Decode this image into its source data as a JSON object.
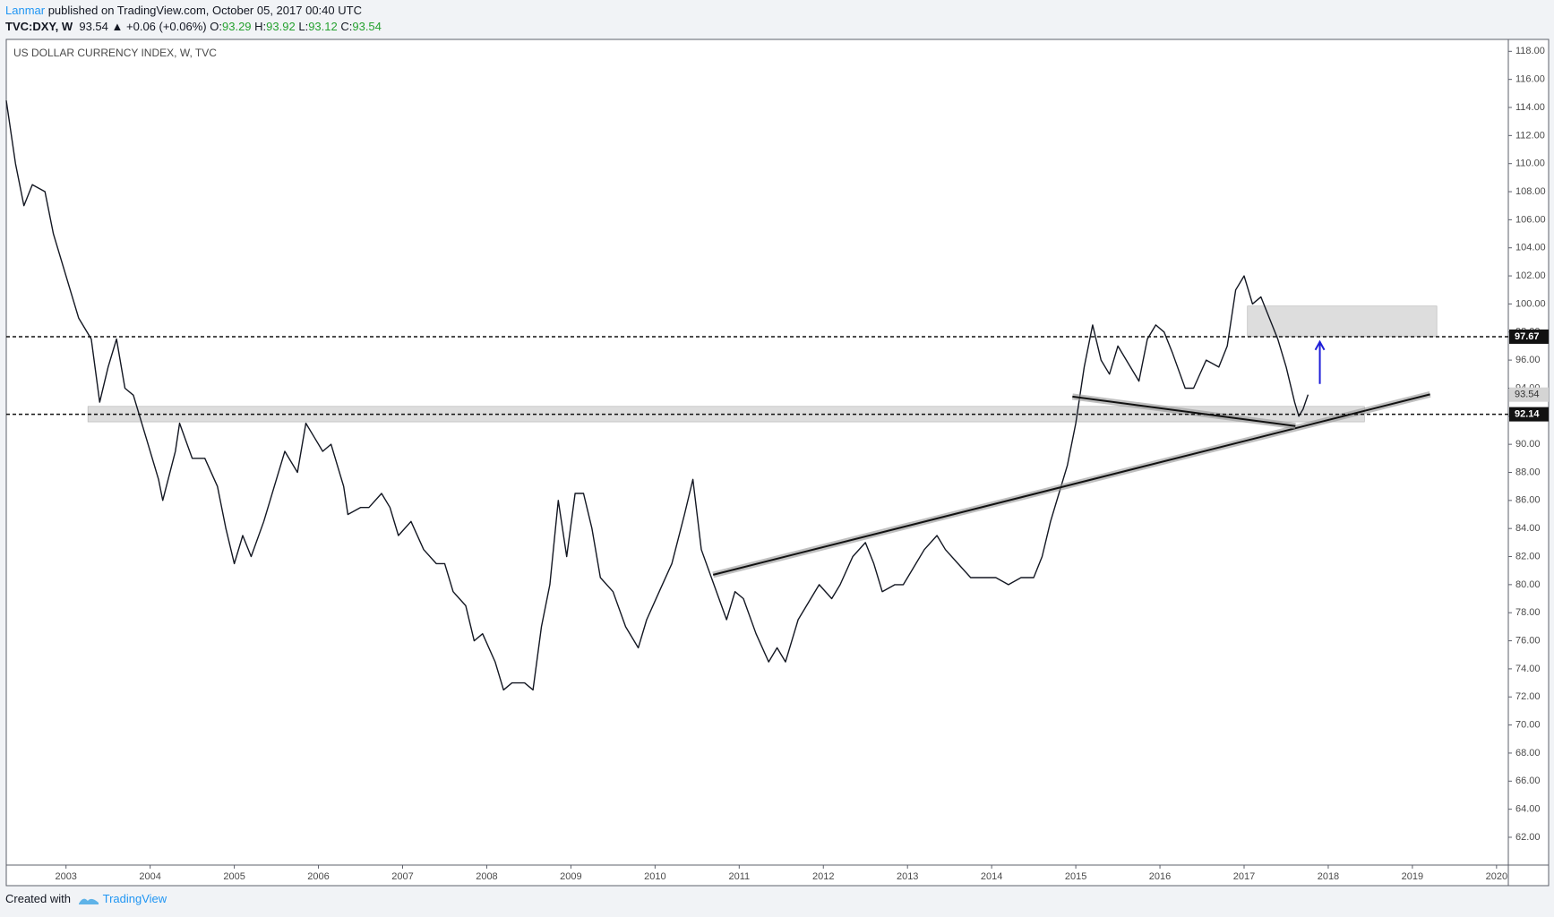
{
  "header": {
    "author": "Lanmar",
    "published": "published on TradingView.com, October 05, 2017 00:40 UTC",
    "symbol": "TVC:DXY, W",
    "last": 93.54,
    "change": "▲ +0.06 (+0.06%)",
    "ohlc": [
      {
        "label": "O:",
        "value": 93.29
      },
      {
        "label": "H:",
        "value": 93.92
      },
      {
        "label": "L:",
        "value": 93.12
      },
      {
        "label": "C:",
        "value": 93.54
      }
    ]
  },
  "footer": {
    "text": "Created with",
    "brand": "TradingView"
  },
  "chart_data": {
    "type": "line",
    "title": "US DOLLAR CURRENCY INDEX, W, TVC",
    "color": "#131722",
    "x": [
      2002.29,
      2002.4,
      2002.5,
      2002.6,
      2002.75,
      2002.85,
      2002.95,
      2003.05,
      2003.15,
      2003.3,
      2003.4,
      2003.5,
      2003.6,
      2003.7,
      2003.8,
      2003.95,
      2004.1,
      2004.15,
      2004.3,
      2004.35,
      2004.5,
      2004.65,
      2004.8,
      2004.9,
      2005.0,
      2005.1,
      2005.2,
      2005.35,
      2005.5,
      2005.6,
      2005.75,
      2005.85,
      2005.95,
      2006.05,
      2006.15,
      2006.3,
      2006.35,
      2006.5,
      2006.6,
      2006.75,
      2006.85,
      2006.95,
      2007.1,
      2007.25,
      2007.4,
      2007.5,
      2007.6,
      2007.75,
      2007.85,
      2007.95,
      2008.1,
      2008.2,
      2008.3,
      2008.45,
      2008.55,
      2008.65,
      2008.75,
      2008.85,
      2008.95,
      2009.05,
      2009.15,
      2009.25,
      2009.35,
      2009.5,
      2009.65,
      2009.8,
      2009.9,
      2010.05,
      2010.2,
      2010.35,
      2010.45,
      2010.55,
      2010.7,
      2010.85,
      2010.95,
      2011.05,
      2011.2,
      2011.35,
      2011.45,
      2011.55,
      2011.7,
      2011.85,
      2011.95,
      2012.1,
      2012.2,
      2012.35,
      2012.5,
      2012.6,
      2012.7,
      2012.85,
      2012.95,
      2013.1,
      2013.2,
      2013.35,
      2013.45,
      2013.6,
      2013.75,
      2013.9,
      2014.05,
      2014.2,
      2014.35,
      2014.5,
      2014.6,
      2014.7,
      2014.8,
      2014.9,
      2015.0,
      2015.1,
      2015.2,
      2015.3,
      2015.4,
      2015.5,
      2015.6,
      2015.75,
      2015.85,
      2015.95,
      2016.05,
      2016.15,
      2016.3,
      2016.4,
      2016.55,
      2016.7,
      2016.8,
      2016.9,
      2017.0,
      2017.1,
      2017.2,
      2017.3,
      2017.4,
      2017.5,
      2017.6,
      2017.65,
      2017.7,
      2017.76
    ],
    "values": [
      114.5,
      110,
      107,
      108.5,
      108,
      105,
      103,
      101,
      99,
      97.5,
      93,
      95.5,
      97.5,
      94,
      93.5,
      90.5,
      87.5,
      86,
      89.5,
      91.5,
      89,
      89,
      87,
      84,
      81.5,
      83.5,
      82,
      84.5,
      87.5,
      89.5,
      88,
      91.5,
      90.5,
      89.5,
      90,
      87,
      85,
      85.5,
      85.5,
      86.5,
      85.5,
      83.5,
      84.5,
      82.5,
      81.5,
      81.5,
      79.5,
      78.5,
      76,
      76.5,
      74.5,
      72.5,
      73,
      73,
      72.5,
      77,
      80,
      86,
      82,
      86.5,
      86.5,
      84,
      80.5,
      79.5,
      77,
      75.5,
      77.5,
      79.5,
      81.5,
      85,
      87.5,
      82.5,
      80,
      77.5,
      79.5,
      79,
      76.5,
      74.5,
      75.5,
      74.5,
      77.5,
      79,
      80,
      79,
      80,
      82,
      83,
      81.5,
      79.5,
      80,
      80,
      81.5,
      82.5,
      83.5,
      82.5,
      81.5,
      80.5,
      80.5,
      80.5,
      80,
      80.5,
      80.5,
      82,
      84.5,
      86.5,
      88.5,
      91.5,
      95.5,
      98.5,
      96,
      95,
      97,
      96,
      94.5,
      97.5,
      98.5,
      98,
      96.5,
      94,
      94,
      96,
      95.5,
      97,
      101,
      102,
      100,
      100.5,
      99,
      97.5,
      95.5,
      93,
      92,
      92.5,
      93.54
    ],
    "xlim": [
      2002.29,
      2020.14
    ],
    "xticks": [
      2003,
      2004,
      2005,
      2006,
      2007,
      2008,
      2009,
      2010,
      2011,
      2012,
      2013,
      2014,
      2015,
      2016,
      2017,
      2018,
      2019,
      2020
    ],
    "ylim": [
      60.02,
      118.85
    ],
    "yticks": [
      {
        "value": 62,
        "label": "62.00"
      },
      {
        "value": 64,
        "label": "64.00"
      },
      {
        "value": 66,
        "label": "66.00"
      },
      {
        "value": 68,
        "label": "68.00"
      },
      {
        "value": 70,
        "label": "70.00"
      },
      {
        "value": 72,
        "label": "72.00"
      },
      {
        "value": 74,
        "label": "74.00"
      },
      {
        "value": 76,
        "label": "76.00"
      },
      {
        "value": 78,
        "label": "78.00"
      },
      {
        "value": 80,
        "label": "80.00"
      },
      {
        "value": 82,
        "label": "82.00"
      },
      {
        "value": 84,
        "label": "84.00"
      },
      {
        "value": 86,
        "label": "86.00"
      },
      {
        "value": 88,
        "label": "88.00"
      },
      {
        "value": 90,
        "label": "90.00"
      },
      {
        "value": 92,
        "label": "92.00"
      },
      {
        "value": 94,
        "label": "94.00"
      },
      {
        "value": 96,
        "label": "96.00"
      },
      {
        "value": 98,
        "label": "98.00"
      },
      {
        "value": 100,
        "label": "100.00"
      },
      {
        "value": 102,
        "label": "102.00"
      },
      {
        "value": 104,
        "label": "104.00"
      },
      {
        "value": 106,
        "label": "106.00"
      },
      {
        "value": 108,
        "label": "108.00"
      },
      {
        "value": 110,
        "label": "110.00"
      },
      {
        "value": 112,
        "label": "112.00"
      },
      {
        "value": 114,
        "label": "114.00"
      },
      {
        "value": 116,
        "label": "116.00"
      },
      {
        "value": 118,
        "label": "118.00"
      }
    ],
    "grid": false,
    "levels": [
      97.67,
      92.14
    ],
    "zones": [
      {
        "x": [
          2003.26,
          2018.43
        ],
        "y": [
          91.6,
          92.7
        ]
      },
      {
        "x": [
          2017.04,
          2019.29
        ],
        "y": [
          97.67,
          99.85
        ]
      }
    ],
    "trendlines": [
      {
        "x": [
          2010.69,
          2019.21
        ],
        "y": [
          80.7,
          93.56
        ]
      },
      {
        "x": [
          2014.96,
          2017.61
        ],
        "y": [
          93.4,
          91.3
        ]
      }
    ],
    "arrows": [
      {
        "x": [
          2017.9,
          2017.9
        ],
        "y": [
          94.3,
          97.3
        ],
        "color": "#1f1fd8"
      }
    ]
  }
}
